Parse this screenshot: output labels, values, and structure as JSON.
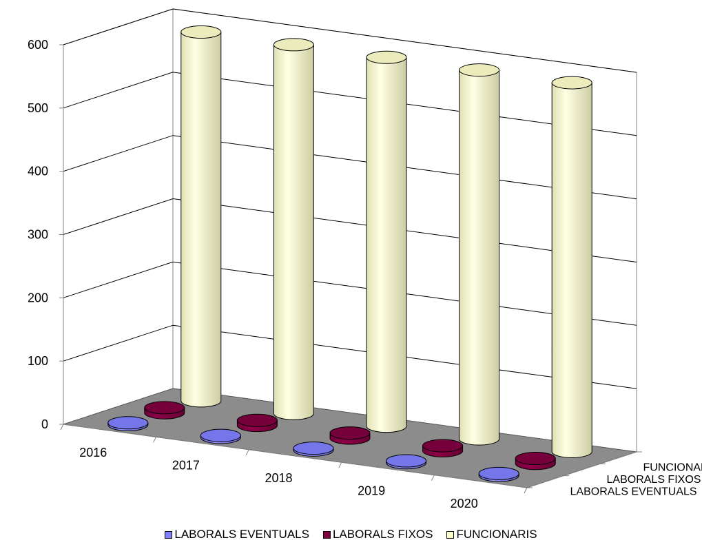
{
  "chart_data": {
    "type": "bar",
    "subtype": "3d-cylinder",
    "categories": [
      "2016",
      "2017",
      "2018",
      "2019",
      "2020"
    ],
    "series": [
      {
        "name": "LABORALS EVENTUALS",
        "values": [
          3,
          3,
          3,
          3,
          3
        ],
        "color": "#8080ff"
      },
      {
        "name": "LABORALS FIXOS",
        "values": [
          8,
          8,
          8,
          8,
          8
        ],
        "color": "#800040"
      },
      {
        "name": "FUNCIONARIS",
        "values": [
          583,
          583,
          583,
          583,
          583
        ],
        "color": "#ffffcc"
      }
    ],
    "ylim": [
      0,
      600
    ],
    "yticks": [
      "0",
      "100",
      "200",
      "300",
      "400",
      "500",
      "600"
    ],
    "depth_labels": [
      "FUNCIONARIS",
      "LABORALS FIXOS",
      "LABORALS EVENTUALS"
    ],
    "grid": true,
    "legend_position": "bottom"
  }
}
